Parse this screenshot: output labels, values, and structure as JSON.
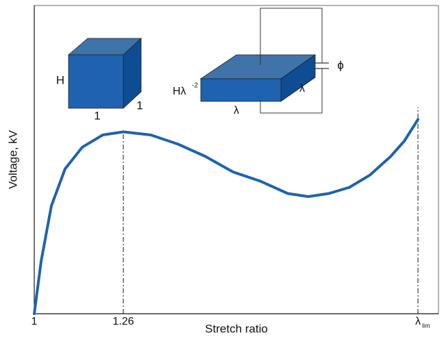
{
  "chart_data": {
    "type": "line",
    "xlabel": "Stretch ratio",
    "ylabel": "Voltage, kV",
    "x": [
      1.0,
      1.02,
      1.05,
      1.09,
      1.14,
      1.2,
      1.26,
      1.34,
      1.42,
      1.5,
      1.58,
      1.66,
      1.74,
      1.8,
      1.86,
      1.92,
      1.98,
      2.04,
      2.08,
      2.12
    ],
    "values": [
      0,
      0.17,
      0.35,
      0.47,
      0.54,
      0.58,
      0.59,
      0.58,
      0.55,
      0.51,
      0.46,
      0.43,
      0.39,
      0.38,
      0.39,
      0.41,
      0.45,
      0.51,
      0.56,
      0.63
    ],
    "color": "#1f63b0",
    "xlim": [
      1,
      2.18
    ],
    "ylim": [
      0,
      1
    ],
    "xticks": [
      1,
      1.26,
      {
        "value": 2.12,
        "label": "λ"
      }
    ],
    "xtick_subscript": "lim"
  },
  "insets": {
    "cube": {
      "height": "H",
      "width": "1",
      "depth": "1"
    },
    "slab": {
      "thickness": "Hλ",
      "thickness_exponent": "-2",
      "width": "λ",
      "depth": "λ",
      "source": "ϕ"
    }
  }
}
